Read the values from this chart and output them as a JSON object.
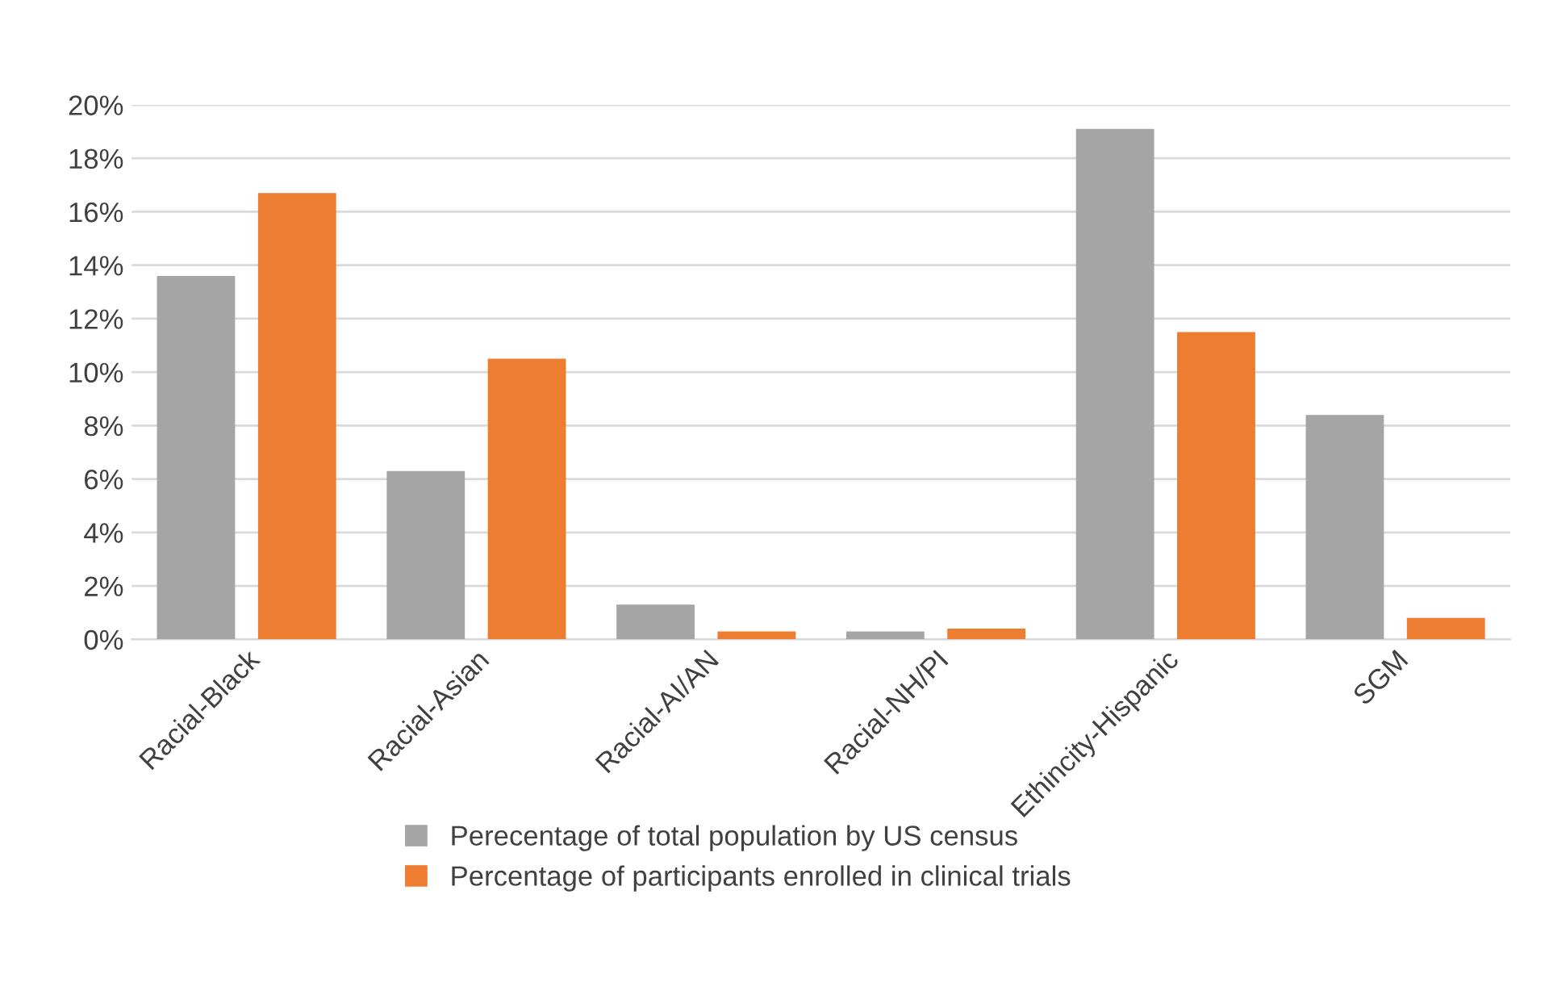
{
  "chart_data": {
    "type": "bar",
    "categories": [
      "Racial-Black",
      "Racial-Asian",
      "Racial-AI/AN",
      "Racial-NH/PI",
      "Ethincity-Hispanic",
      "SGM"
    ],
    "series": [
      {
        "name": "Perecentage of total population by US census",
        "color": "#a5a5a5",
        "values": [
          13.6,
          6.3,
          1.3,
          0.3,
          19.1,
          8.4
        ]
      },
      {
        "name": "Percentage of participants enrolled in clinical trials",
        "color": "#ed7d31",
        "values": [
          16.7,
          10.5,
          0.3,
          0.4,
          11.5,
          0.8
        ]
      }
    ],
    "ylim": [
      0,
      20
    ],
    "yticks": [
      {
        "value": 0,
        "label": "0%"
      },
      {
        "value": 2,
        "label": "2%"
      },
      {
        "value": 4,
        "label": "4%"
      },
      {
        "value": 6,
        "label": "6%"
      },
      {
        "value": 8,
        "label": "8%"
      },
      {
        "value": 10,
        "label": "10%"
      },
      {
        "value": 12,
        "label": "12%"
      },
      {
        "value": 14,
        "label": "14%"
      },
      {
        "value": 16,
        "label": "16%"
      },
      {
        "value": 18,
        "label": "18%"
      },
      {
        "value": 20,
        "label": "20%"
      }
    ],
    "grid": "y",
    "legend": "bottom"
  }
}
